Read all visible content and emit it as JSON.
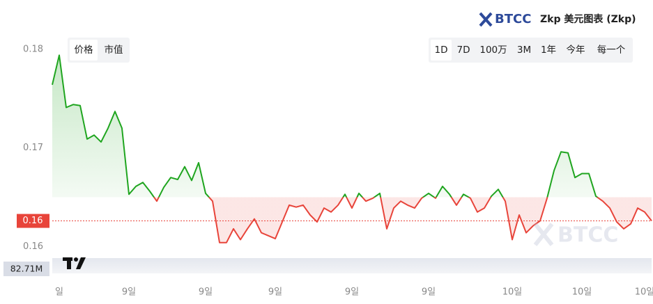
{
  "header": {
    "brand": "BTCC",
    "title": "Zkp 美元图表 (Zkp)"
  },
  "toggles": [
    "价格",
    "市值"
  ],
  "ranges": [
    "1D",
    "7D",
    "100万",
    "3M",
    "1年",
    "今年",
    "每一个"
  ],
  "watermark": "BTCC",
  "chart_data": {
    "type": "line",
    "categories": [
      null,
      "일",
      null,
      null,
      null,
      null,
      null,
      null,
      null,
      null,
      null,
      "9일",
      null,
      null,
      null,
      null,
      null,
      null,
      null,
      null,
      null,
      null,
      "9일",
      null,
      null,
      null,
      null,
      null,
      null,
      null,
      null,
      null,
      "9일",
      null,
      null,
      null,
      null,
      null,
      null,
      null,
      null,
      null,
      null,
      "9일",
      null,
      null,
      null,
      null,
      null,
      null,
      null,
      null,
      null,
      null,
      "9일",
      null,
      null,
      null,
      null,
      null,
      null,
      null,
      null,
      null,
      null,
      null,
      "10일",
      null,
      null,
      null,
      null,
      null,
      null,
      null,
      null,
      null,
      "10일",
      null,
      null,
      null,
      null,
      null,
      null,
      null,
      null,
      "10일",
      null
    ],
    "values": [
      0.1764,
      0.1794,
      0.1741,
      0.1744,
      0.1743,
      0.1709,
      0.1713,
      0.1706,
      0.172,
      0.1737,
      0.172,
      0.1653,
      0.1661,
      0.1665,
      0.1656,
      0.1646,
      0.166,
      0.167,
      0.1668,
      0.1681,
      0.1667,
      0.1685,
      0.1654,
      0.1646,
      0.1604,
      0.1604,
      0.1618,
      0.1607,
      0.1618,
      0.1628,
      0.1614,
      0.1611,
      0.1608,
      0.1625,
      0.1642,
      0.164,
      0.1642,
      0.1632,
      0.1625,
      0.1639,
      0.1635,
      0.1642,
      0.1653,
      0.1639,
      0.1654,
      0.1646,
      0.1649,
      0.1654,
      0.1618,
      0.1639,
      0.1646,
      0.1642,
      0.1639,
      0.1649,
      0.1654,
      0.1649,
      0.1661,
      0.1653,
      0.1642,
      0.1653,
      0.1649,
      0.1635,
      0.1639,
      0.1651,
      0.1658,
      0.1646,
      0.1607,
      0.1632,
      0.1614,
      0.1621,
      0.1626,
      0.1649,
      0.1677,
      0.1696,
      0.1695,
      0.167,
      0.1674,
      0.1674,
      0.1651,
      0.1646,
      0.1639,
      0.1625,
      0.1618,
      0.1623,
      0.1639,
      0.1635,
      0.1626
    ],
    "baseline": 0.165,
    "up_color": "#1fa51f",
    "down_color": "#e8443a",
    "ylim": [
      0.1589,
      0.185
    ],
    "yticks": [
      0.18,
      0.17,
      0.16
    ],
    "last_price": 0.1626,
    "last_price_label": "0.16",
    "volume_label": "82.71M"
  }
}
